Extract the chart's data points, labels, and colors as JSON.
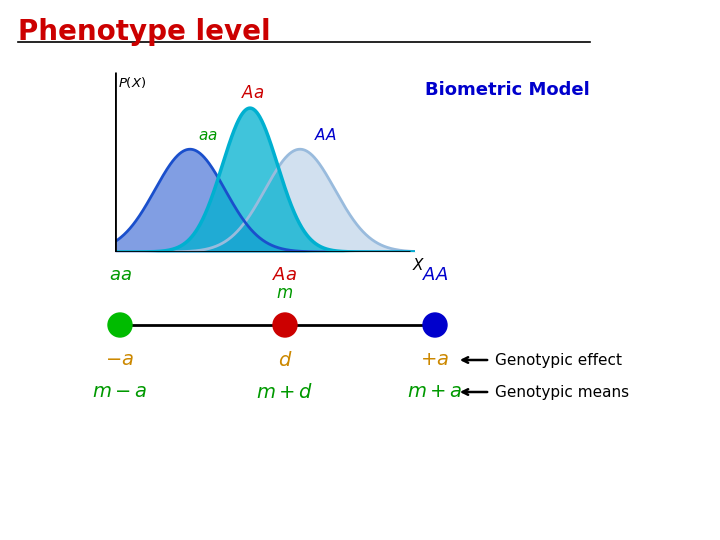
{
  "title": "Phenotype level",
  "title_color": "#cc0000",
  "background_color": "#ffffff",
  "biometric_model_text": "Biometric Model",
  "biometric_model_color": "#0000cc",
  "curve_aa_color": "#1a4fcc",
  "curve_Aa_color": "#00b0d0",
  "curve_AA_color": "#99bbdd",
  "label_aa_color": "#009900",
  "label_Aa_color": "#cc0000",
  "label_AA_color": "#0000cc",
  "label_m_color": "#009900",
  "label_effect_color": "#cc8800",
  "label_means_color": "#009900",
  "dot_aa_color": "#00bb00",
  "dot_Aa_color": "#cc0000",
  "dot_AA_color": "#0000cc",
  "genotypic_effect_text": "Genotypic effect",
  "genotypic_means_text": "Genotypic means",
  "mu_aa": 0.0,
  "mu_Aa": 1.2,
  "mu_AA": 2.2,
  "sigma_aa": 0.7,
  "sigma_Aa": 0.55,
  "sigma_AA": 0.7,
  "amp_aa": 1.0,
  "amp_Aa": 1.4,
  "amp_AA": 1.0
}
